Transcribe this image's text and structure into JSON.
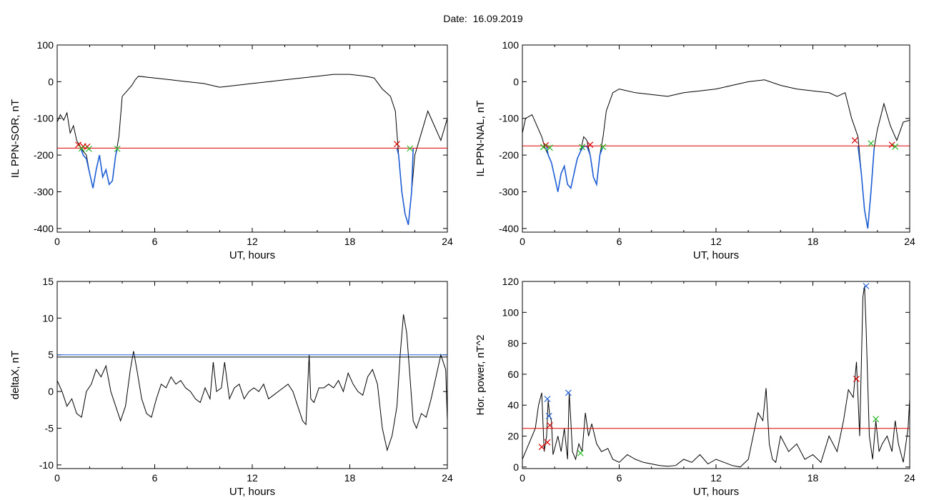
{
  "page": {
    "title": "Date:  16.09.2019"
  },
  "colors": {
    "black": "#000000",
    "red": "#dd0000",
    "blue": "#1f5fd6",
    "green": "#22bb22"
  },
  "chart_data": [
    {
      "id": "ppn-sor",
      "type": "line",
      "title": "",
      "xlabel": "UT, hours",
      "ylabel": "IL PPN-SOR, nT",
      "xlim": [
        0,
        24
      ],
      "ylim": [
        -410,
        100
      ],
      "xticks": [
        0,
        6,
        12,
        18,
        24
      ],
      "yticks": [
        100,
        0,
        -100,
        -200,
        -300,
        -400
      ],
      "threshold": {
        "y": -181,
        "color": "red"
      },
      "series": [
        {
          "color": "black",
          "x": [
            0,
            0.2,
            0.4,
            0.6,
            0.8,
            1.0,
            1.2,
            1.4,
            1.6,
            1.8,
            2.0,
            2.2,
            2.4,
            2.6,
            2.8,
            3.0,
            3.2,
            3.4,
            3.6,
            3.8,
            4.0,
            4.2,
            4.4,
            4.6,
            4.8,
            5.0,
            6.0,
            7,
            8,
            9,
            10,
            11,
            12,
            13,
            14,
            15,
            16,
            17,
            18,
            19,
            19.5,
            20.0,
            20.5,
            20.8,
            21.0,
            21.2,
            21.4,
            21.6,
            21.8,
            22.0,
            22.4,
            22.8,
            23.2,
            23.6,
            24
          ],
          "y": [
            -110,
            -90,
            -105,
            -85,
            -140,
            -120,
            -160,
            -175,
            -190,
            -200,
            -250,
            -290,
            -240,
            -200,
            -260,
            -240,
            -280,
            -270,
            -200,
            -150,
            -40,
            -30,
            -20,
            -10,
            5,
            15,
            10,
            5,
            0,
            -5,
            -15,
            -10,
            -5,
            0,
            5,
            10,
            15,
            20,
            20,
            15,
            10,
            -20,
            -40,
            -80,
            -200,
            -300,
            -360,
            -390,
            -300,
            -200,
            -140,
            -80,
            -120,
            -160,
            -100
          ]
        },
        {
          "color": "blue",
          "x": [
            1.45,
            1.6,
            1.8,
            2.0,
            2.2,
            2.4,
            2.6,
            2.8,
            3.0,
            3.2,
            3.4,
            3.6,
            3.7
          ],
          "y": [
            -182,
            -200,
            -210,
            -250,
            -290,
            -240,
            -200,
            -260,
            -240,
            -280,
            -270,
            -200,
            -182
          ]
        },
        {
          "color": "blue",
          "x": [
            20.9,
            21.0,
            21.2,
            21.4,
            21.6,
            21.8,
            21.9
          ],
          "y": [
            -182,
            -200,
            -300,
            -360,
            -390,
            -300,
            -182
          ]
        }
      ],
      "markers": [
        {
          "x": 1.3,
          "y": -172,
          "color": "red"
        },
        {
          "x": 1.6,
          "y": -176,
          "color": "red"
        },
        {
          "x": 1.85,
          "y": -177,
          "color": "red"
        },
        {
          "x": 20.9,
          "y": -170,
          "color": "red"
        },
        {
          "x": 1.5,
          "y": -182,
          "color": "green"
        },
        {
          "x": 1.95,
          "y": -183,
          "color": "green"
        },
        {
          "x": 3.7,
          "y": -183,
          "color": "green"
        },
        {
          "x": 21.7,
          "y": -182,
          "color": "green"
        }
      ]
    },
    {
      "id": "ppn-nal",
      "type": "line",
      "title": "",
      "xlabel": "UT, hours",
      "ylabel": "IL PPN-NAL, nT",
      "xlim": [
        0,
        24
      ],
      "ylim": [
        -410,
        100
      ],
      "xticks": [
        0,
        6,
        12,
        18,
        24
      ],
      "yticks": [
        100,
        0,
        -100,
        -200,
        -300,
        -400
      ],
      "threshold": {
        "y": -175,
        "color": "red"
      },
      "series": [
        {
          "color": "black",
          "x": [
            0,
            0.2,
            0.4,
            0.6,
            0.8,
            1.0,
            1.2,
            1.4,
            1.6,
            1.8,
            2.0,
            2.2,
            2.4,
            2.6,
            2.8,
            3.0,
            3.2,
            3.4,
            3.6,
            3.8,
            4.0,
            4.2,
            4.4,
            4.6,
            4.8,
            5.0,
            5.2,
            5.6,
            6.0,
            7,
            8,
            9,
            10,
            11,
            12,
            13,
            14,
            15,
            16,
            17,
            18,
            19,
            19.5,
            20.0,
            20.4,
            20.8,
            21.0,
            21.2,
            21.4,
            21.6,
            21.8,
            22.0,
            22.4,
            22.8,
            23.2,
            23.6,
            24
          ],
          "y": [
            -140,
            -100,
            -95,
            -90,
            -110,
            -130,
            -150,
            -180,
            -200,
            -220,
            -260,
            -300,
            -250,
            -230,
            -280,
            -290,
            -250,
            -210,
            -190,
            -150,
            -160,
            -200,
            -260,
            -280,
            -200,
            -150,
            -80,
            -30,
            -20,
            -30,
            -35,
            -40,
            -30,
            -25,
            -20,
            -10,
            0,
            5,
            -10,
            -20,
            -25,
            -30,
            -40,
            -30,
            -100,
            -150,
            -250,
            -350,
            -400,
            -300,
            -180,
            -130,
            -60,
            -120,
            -160,
            -110,
            -105
          ]
        },
        {
          "color": "blue",
          "x": [
            1.5,
            1.6,
            1.8,
            2.0,
            2.2,
            2.4,
            2.6,
            2.8,
            3.0,
            3.2,
            3.4,
            3.6,
            3.8,
            4.0,
            4.2,
            4.4,
            4.6,
            4.8,
            5.0
          ],
          "y": [
            -176,
            -200,
            -220,
            -260,
            -300,
            -250,
            -230,
            -280,
            -290,
            -250,
            -210,
            -190,
            -176,
            -176,
            -200,
            -260,
            -280,
            -200,
            -176
          ]
        },
        {
          "color": "blue",
          "x": [
            20.8,
            21.0,
            21.2,
            21.4,
            21.6,
            21.8
          ],
          "y": [
            -176,
            -250,
            -350,
            -400,
            -300,
            -180
          ]
        }
      ],
      "markers": [
        {
          "x": 1.45,
          "y": -173,
          "color": "red"
        },
        {
          "x": 4.2,
          "y": -172,
          "color": "red"
        },
        {
          "x": 20.6,
          "y": -160,
          "color": "red"
        },
        {
          "x": 22.9,
          "y": -172,
          "color": "red"
        },
        {
          "x": 1.3,
          "y": -178,
          "color": "green"
        },
        {
          "x": 1.7,
          "y": -180,
          "color": "green"
        },
        {
          "x": 3.7,
          "y": -178,
          "color": "green"
        },
        {
          "x": 5.0,
          "y": -178,
          "color": "green"
        },
        {
          "x": 21.6,
          "y": -168,
          "color": "green"
        },
        {
          "x": 23.1,
          "y": -177,
          "color": "green"
        }
      ]
    },
    {
      "id": "deltax",
      "type": "line",
      "title": "",
      "xlabel": "UT, hours",
      "ylabel": "deltaX, nT",
      "xlim": [
        0,
        24
      ],
      "ylim": [
        -10.5,
        15
      ],
      "xticks": [
        0,
        6,
        12,
        18,
        24
      ],
      "yticks": [
        15,
        10,
        5,
        0,
        -5,
        -10
      ],
      "thresholds": [
        {
          "y": 5.0,
          "color": "blue"
        },
        {
          "y": 4.7,
          "color": "black"
        }
      ],
      "series": [
        {
          "color": "black",
          "x": [
            0,
            0.3,
            0.6,
            0.9,
            1.2,
            1.5,
            1.8,
            2.1,
            2.4,
            2.7,
            3.0,
            3.3,
            3.6,
            3.9,
            4.2,
            4.5,
            4.7,
            4.9,
            5.2,
            5.5,
            5.8,
            6.1,
            6.4,
            6.7,
            7.0,
            7.3,
            7.6,
            7.9,
            8.2,
            8.5,
            8.8,
            9.1,
            9.4,
            9.6,
            9.8,
            10.1,
            10.3,
            10.6,
            10.9,
            11.2,
            11.5,
            11.8,
            12.1,
            12.4,
            12.7,
            13.0,
            13.3,
            13.6,
            13.9,
            14.2,
            14.5,
            14.8,
            15.1,
            15.3,
            15.5,
            15.6,
            15.8,
            16.1,
            16.4,
            16.7,
            17.0,
            17.3,
            17.6,
            17.9,
            18.2,
            18.5,
            18.8,
            19.1,
            19.4,
            19.7,
            20.0,
            20.3,
            20.6,
            20.9,
            21.1,
            21.3,
            21.5,
            21.7,
            21.9,
            22.1,
            22.4,
            22.7,
            23.0,
            23.3,
            23.6,
            23.9,
            24
          ],
          "y": [
            1.5,
            0,
            -2,
            -1,
            -3,
            -3.5,
            0,
            1,
            3,
            2,
            3.5,
            0,
            -2,
            -4,
            -2,
            3,
            5.5,
            3,
            -1,
            -3,
            -3.5,
            -1,
            1,
            0.5,
            2,
            1,
            1.5,
            0.5,
            0,
            -1,
            -1.5,
            0.5,
            -1,
            4,
            0,
            0.5,
            4,
            -1,
            0.5,
            1,
            -1,
            0,
            0.5,
            0,
            1,
            -1,
            -0.5,
            0,
            0.5,
            1,
            0,
            -2,
            -4,
            -4.5,
            5,
            -1,
            -1.5,
            0.5,
            0.5,
            1,
            0.5,
            1.5,
            0,
            2.5,
            1,
            0,
            -0.5,
            2,
            3,
            1,
            -5,
            -8,
            -6,
            -2,
            5,
            10.5,
            8,
            2,
            -4,
            -5,
            -3,
            -3.5,
            -1,
            2,
            5,
            3,
            -4
          ]
        }
      ]
    },
    {
      "id": "hor-power",
      "type": "line",
      "title": "",
      "xlabel": "UT, hours",
      "ylabel": "Hor. power, nT^2",
      "xlim": [
        0,
        24
      ],
      "ylim": [
        -1,
        120
      ],
      "xticks": [
        0,
        6,
        12,
        18,
        24
      ],
      "yticks": [
        120,
        100,
        80,
        60,
        40,
        20,
        0
      ],
      "threshold": {
        "y": 25,
        "color": "red"
      },
      "series": [
        {
          "color": "black",
          "x": [
            0,
            0.4,
            0.8,
            1.0,
            1.2,
            1.35,
            1.5,
            1.6,
            1.7,
            1.8,
            1.9,
            2.0,
            2.2,
            2.4,
            2.6,
            2.8,
            2.9,
            3.0,
            3.1,
            3.3,
            3.5,
            3.7,
            3.9,
            4.1,
            4.3,
            4.6,
            4.9,
            5.3,
            5.6,
            6.0,
            6.5,
            7,
            7.5,
            8,
            8.5,
            9,
            9.5,
            10,
            10.5,
            11,
            11.5,
            12,
            12.5,
            13,
            13.5,
            14,
            14.3,
            14.6,
            14.9,
            15.1,
            15.3,
            15.5,
            15.7,
            16,
            16.5,
            17,
            17.5,
            18,
            18.5,
            19,
            19.5,
            19.9,
            20.2,
            20.5,
            20.7,
            20.9,
            21.1,
            21.2,
            21.3,
            21.5,
            21.7,
            21.9,
            22.1,
            22.3,
            22.6,
            22.9,
            23.1,
            23.3,
            23.6,
            23.9,
            24
          ],
          "y": [
            5,
            15,
            25,
            40,
            48,
            10,
            20,
            43,
            33,
            30,
            8,
            12,
            20,
            10,
            25,
            5,
            48,
            30,
            10,
            5,
            15,
            10,
            35,
            20,
            28,
            15,
            10,
            12,
            5,
            3,
            8,
            5,
            3,
            2,
            1,
            0.5,
            1,
            5,
            3,
            8,
            2,
            5,
            3,
            1,
            0,
            5,
            20,
            35,
            30,
            51,
            15,
            5,
            3,
            20,
            10,
            15,
            5,
            8,
            3,
            20,
            10,
            30,
            50,
            45,
            68,
            20,
            110,
            117,
            90,
            20,
            5,
            30,
            10,
            15,
            20,
            10,
            30,
            15,
            3,
            25,
            44
          ]
        }
      ],
      "markers": [
        {
          "x": 1.55,
          "y": 44,
          "color": "blue"
        },
        {
          "x": 1.65,
          "y": 33,
          "color": "blue"
        },
        {
          "x": 2.85,
          "y": 48,
          "color": "blue"
        },
        {
          "x": 21.3,
          "y": 117,
          "color": "blue"
        },
        {
          "x": 1.2,
          "y": 13,
          "color": "red"
        },
        {
          "x": 1.55,
          "y": 16,
          "color": "red"
        },
        {
          "x": 1.7,
          "y": 27,
          "color": "red"
        },
        {
          "x": 20.7,
          "y": 57,
          "color": "red"
        },
        {
          "x": 3.6,
          "y": 9,
          "color": "green"
        },
        {
          "x": 21.9,
          "y": 31,
          "color": "green"
        }
      ]
    }
  ]
}
